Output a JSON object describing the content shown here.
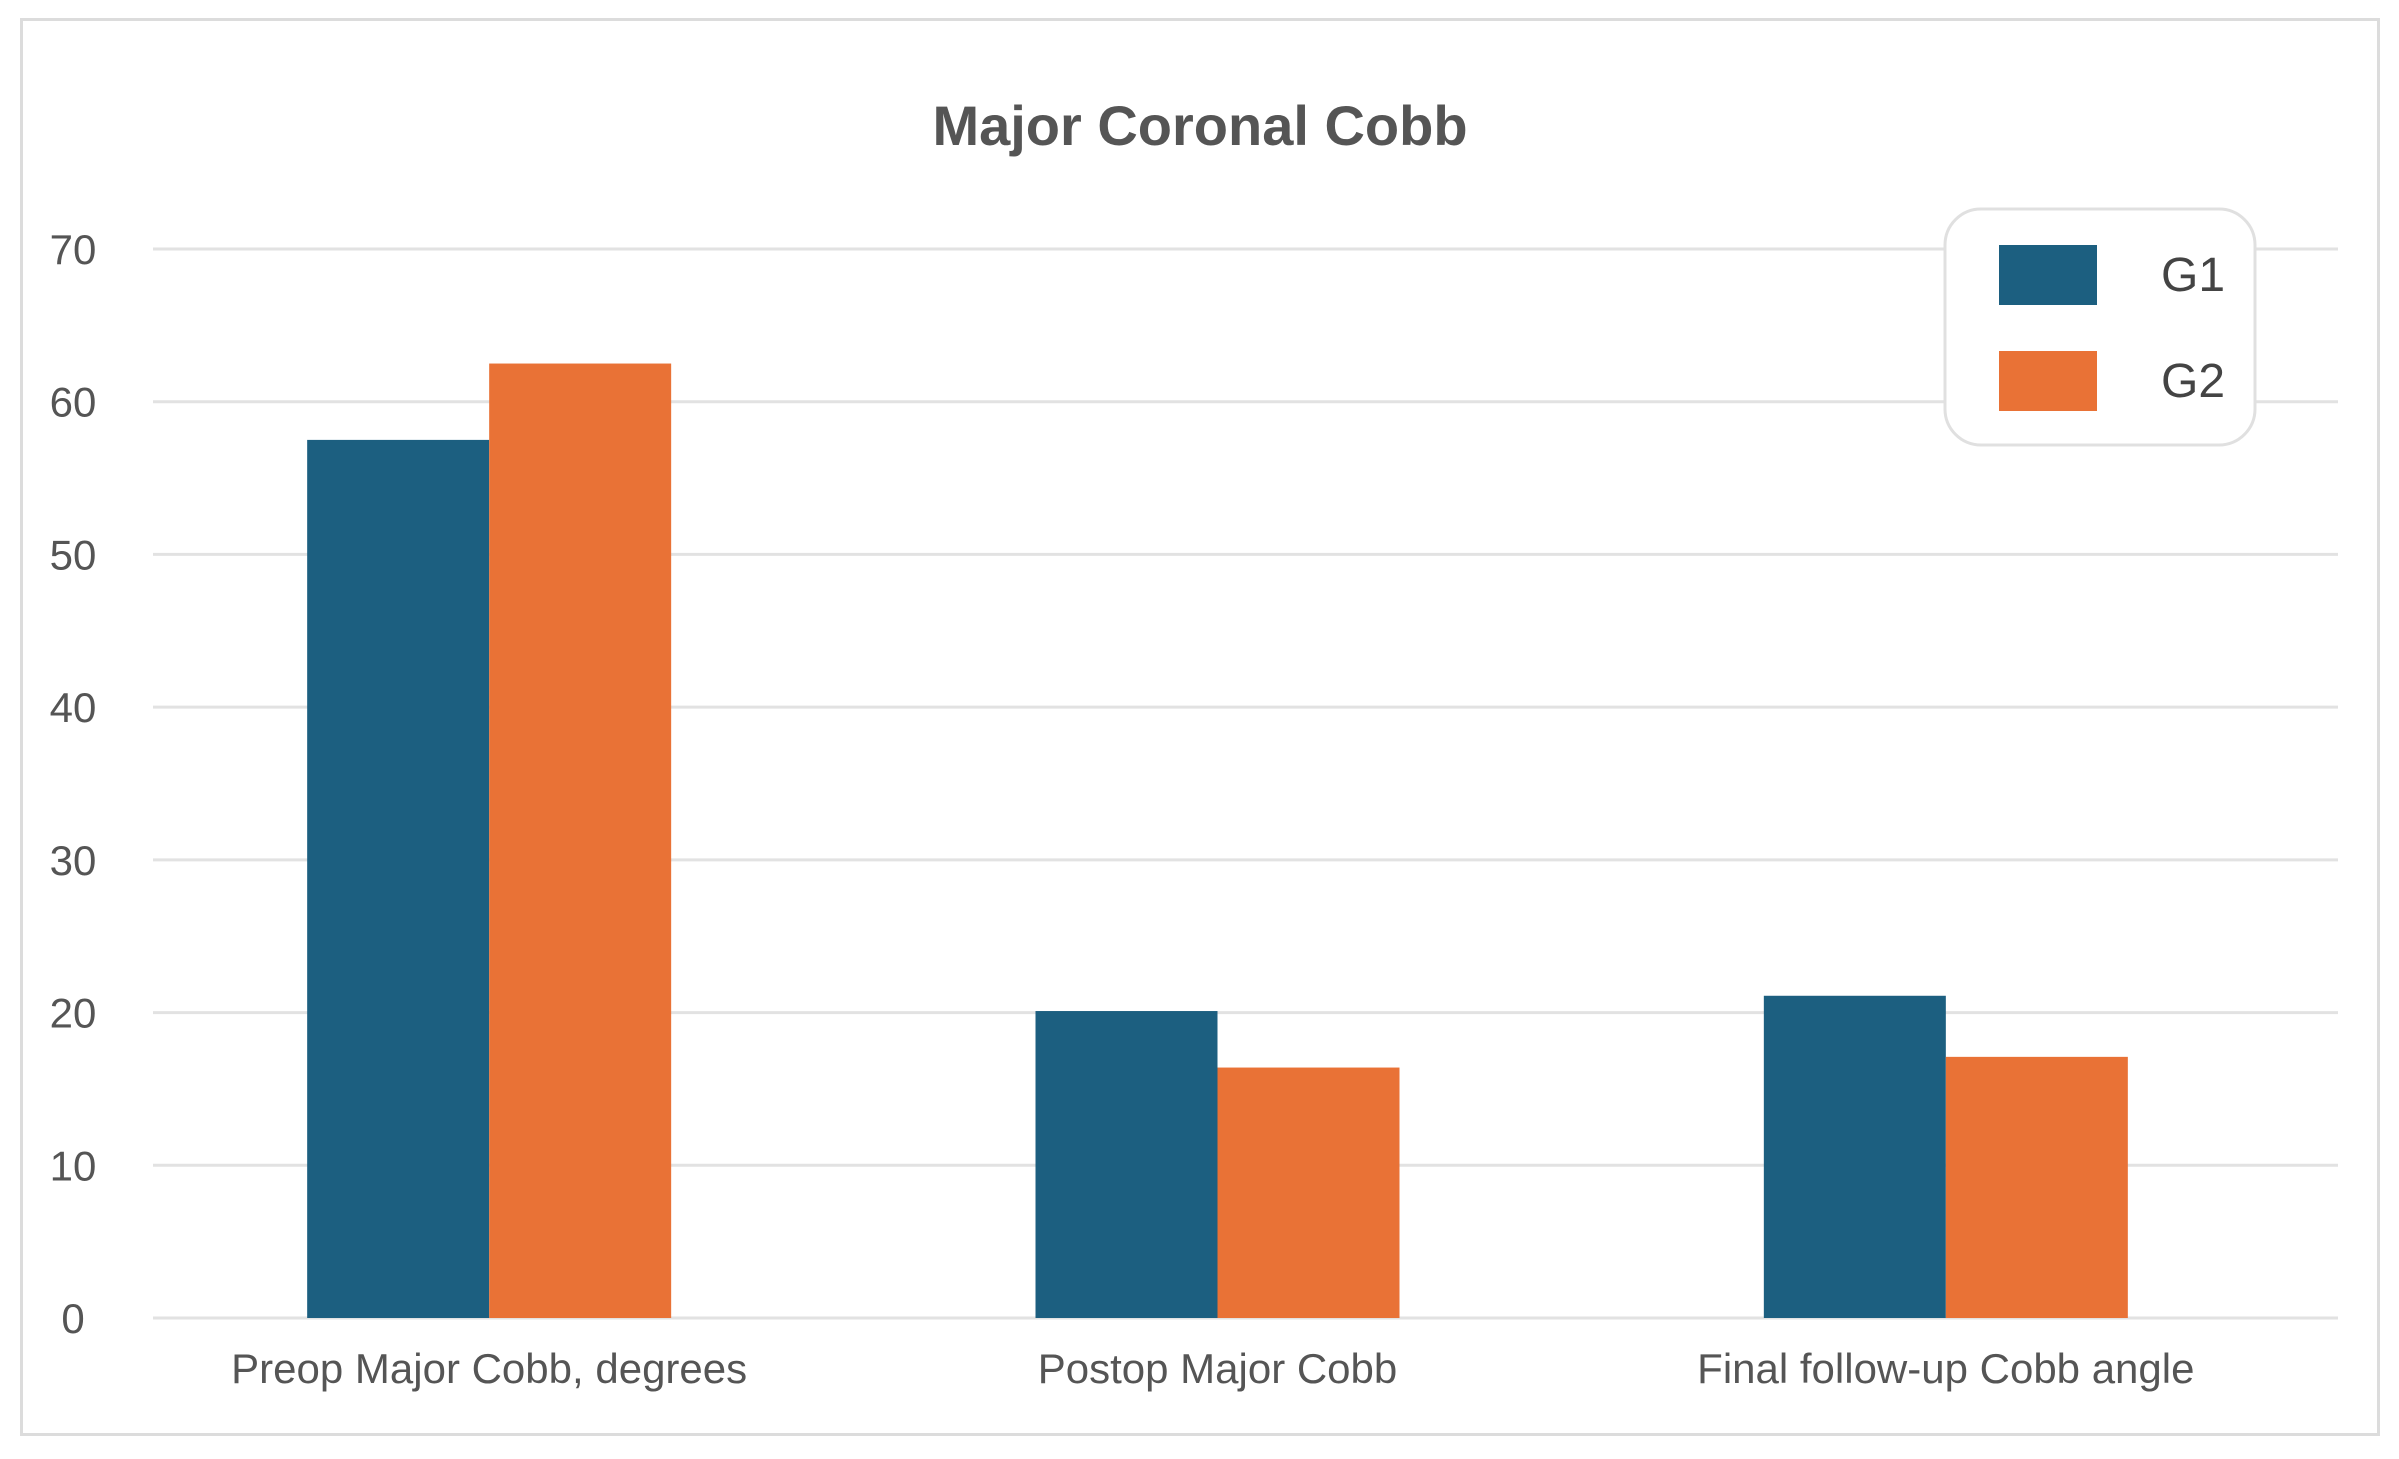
{
  "chart_data": {
    "type": "bar",
    "title": "Major Coronal Cobb",
    "xlabel": "",
    "ylabel": "",
    "categories": [
      "Preop Major Cobb, degrees",
      "Postop Major Cobb",
      "Final follow-up Cobb angle"
    ],
    "series": [
      {
        "name": "G1",
        "color": "#1c5f80",
        "values": [
          57.5,
          20.1,
          21.1
        ]
      },
      {
        "name": "G2",
        "color": "#e97236",
        "values": [
          62.5,
          16.4,
          17.1
        ]
      }
    ],
    "ylim": [
      0,
      70
    ],
    "yticks": [
      0,
      10,
      20,
      30,
      40,
      50,
      60,
      70
    ],
    "grid": true,
    "legend_position": "top-right"
  }
}
